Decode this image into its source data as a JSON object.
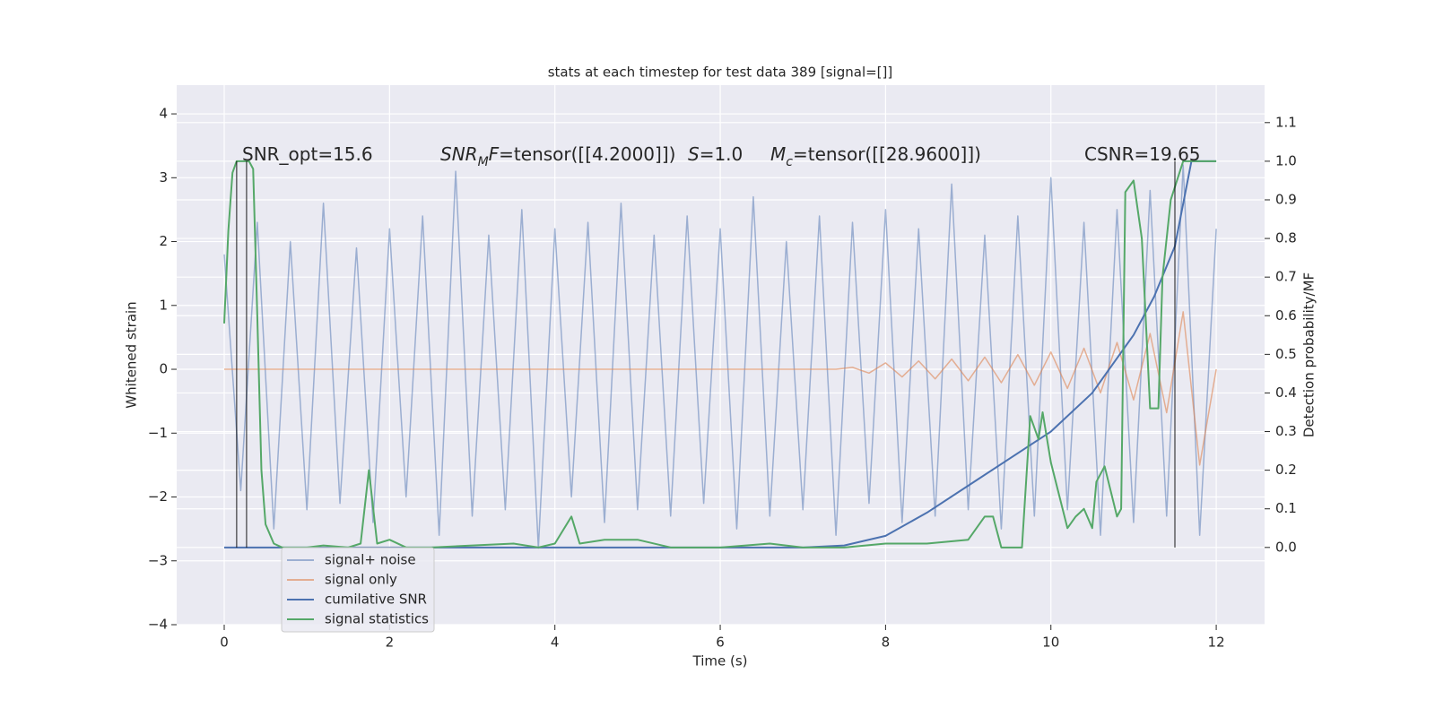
{
  "chart_data": {
    "type": "line",
    "title": "stats at each timestep for test data 389 [signal=[]]",
    "x_label": "Time (s)",
    "y_label": "Whitened strain",
    "y2_label": "Detection probability/MF",
    "xlim": [
      -0.575,
      12.585
    ],
    "ylim": [
      -4,
      4.45
    ],
    "y2lim": [
      -0.2,
      1.197
    ],
    "xticks": [
      0,
      2,
      4,
      6,
      8,
      10,
      12
    ],
    "yticks": [
      {
        "value": -4,
        "label": "−4"
      },
      {
        "value": -3,
        "label": "−3"
      },
      {
        "value": -2,
        "label": "−2"
      },
      {
        "value": -1,
        "label": "−1"
      },
      0,
      1,
      2,
      3,
      4
    ],
    "y2ticks": [
      {
        "value": 0,
        "label": "0.0"
      },
      0.1,
      0.2,
      0.3,
      0.4,
      0.5,
      0.6,
      0.7,
      0.8,
      0.9,
      {
        "value": 1,
        "label": "1.0"
      },
      1.1
    ],
    "grid": true,
    "legend": "lower left",
    "series": [
      {
        "name": "signal+ noise",
        "color": "#4c72b0",
        "opacity": 0.5,
        "x": [
          0,
          0.2,
          0.4,
          0.6,
          0.8,
          1,
          1.2,
          1.4,
          1.6,
          1.8,
          2,
          2.2,
          2.4,
          2.6,
          2.8,
          3,
          3.2,
          3.4,
          3.6,
          3.8,
          4,
          4.2,
          4.4,
          4.6,
          4.8,
          5,
          5.2,
          5.4,
          5.6,
          5.8,
          6,
          6.2,
          6.4,
          6.6,
          6.8,
          7,
          7.2,
          7.4,
          7.6,
          7.8,
          8,
          8.2,
          8.4,
          8.6,
          8.8,
          9,
          9.2,
          9.4,
          9.6,
          9.8,
          10,
          10.2,
          10.4,
          10.6,
          10.8,
          11,
          11.2,
          11.4,
          11.6,
          11.8,
          12
        ],
        "values": [
          1.8,
          -1.9,
          2.3,
          -2.5,
          2.0,
          -2.2,
          2.6,
          -2.1,
          1.9,
          -2.4,
          2.2,
          -2.0,
          2.4,
          -2.6,
          3.1,
          -2.3,
          2.1,
          -2.2,
          2.5,
          -2.8,
          2.2,
          -2.0,
          2.3,
          -2.4,
          2.6,
          -2.2,
          2.1,
          -2.3,
          2.4,
          -2.1,
          2.2,
          -2.5,
          2.7,
          -2.3,
          2.0,
          -2.2,
          2.4,
          -2.6,
          2.3,
          -2.1,
          2.5,
          -2.4,
          2.2,
          -2.3,
          2.9,
          -2.2,
          2.1,
          -2.5,
          2.4,
          -2.3,
          3.0,
          -2.2,
          2.3,
          -2.6,
          2.5,
          -2.4,
          2.8,
          -2.3,
          3.2,
          -2.6,
          2.2
        ]
      },
      {
        "name": "signal only",
        "color": "#dd8452",
        "opacity": 0.6,
        "x": [
          0,
          0.2,
          0.4,
          0.6,
          0.8,
          1,
          1.2,
          1.4,
          1.6,
          1.8,
          2,
          2.2,
          2.4,
          2.6,
          2.8,
          3,
          3.2,
          3.4,
          3.6,
          3.8,
          4,
          4.2,
          4.4,
          4.6,
          4.8,
          5,
          5.2,
          5.4,
          5.6,
          5.8,
          6,
          6.2,
          6.4,
          6.6,
          6.8,
          7,
          7.2,
          7.4,
          7.6,
          7.8,
          8,
          8.2,
          8.4,
          8.6,
          8.8,
          9,
          9.2,
          9.4,
          9.6,
          9.8,
          10,
          10.2,
          10.4,
          10.6,
          10.8,
          11,
          11.2,
          11.4,
          11.6,
          11.8,
          12
        ],
        "values": [
          0,
          0,
          0,
          0,
          0,
          0,
          0,
          0,
          0,
          0,
          0,
          0,
          0,
          0,
          0,
          0,
          0,
          0,
          0,
          0,
          0,
          0,
          0,
          0,
          0,
          0,
          0,
          0,
          0,
          0,
          0,
          0,
          0,
          0,
          0,
          0,
          0,
          0,
          0.03,
          -0.06,
          0.1,
          -0.12,
          0.13,
          -0.15,
          0.16,
          -0.18,
          0.19,
          -0.21,
          0.23,
          -0.25,
          0.27,
          -0.3,
          0.33,
          -0.37,
          0.42,
          -0.48,
          0.56,
          -0.68,
          0.9,
          -1.5,
          0
        ]
      },
      {
        "name": "cumilative SNR",
        "color": "#4c72b0",
        "opacity": 1,
        "axis": "y2",
        "x": [
          0,
          7.0,
          7.5,
          8,
          8.5,
          9,
          9.5,
          10,
          10.5,
          11,
          11.25,
          11.5,
          11.7,
          12
        ],
        "values": [
          0,
          0,
          0.005,
          0.03,
          0.09,
          0.16,
          0.23,
          0.3,
          0.4,
          0.55,
          0.65,
          0.78,
          1.0,
          1.0
        ]
      },
      {
        "name": "signal statistics",
        "color": "#55a868",
        "opacity": 1,
        "axis": "y2",
        "x": [
          0,
          0.05,
          0.1,
          0.15,
          0.3,
          0.35,
          0.4,
          0.45,
          0.5,
          0.6,
          0.7,
          1.0,
          1.2,
          1.5,
          1.65,
          1.75,
          1.85,
          2,
          2.2,
          2.5,
          3.0,
          3.5,
          3.8,
          4.0,
          4.2,
          4.3,
          4.6,
          5.0,
          5.4,
          6.0,
          6.6,
          7.0,
          7.5,
          8.0,
          8.5,
          9.0,
          9.2,
          9.3,
          9.4,
          9.65,
          9.75,
          9.85,
          9.9,
          10.0,
          10.2,
          10.3,
          10.4,
          10.5,
          10.55,
          10.65,
          10.8,
          10.85,
          10.9,
          11.0,
          11.1,
          11.2,
          11.3,
          11.35,
          11.45,
          11.6,
          12.0
        ],
        "values": [
          0.58,
          0.82,
          0.97,
          1.0,
          1.0,
          0.98,
          0.6,
          0.2,
          0.06,
          0.01,
          0.0,
          0.0,
          0.005,
          0.0,
          0.01,
          0.2,
          0.01,
          0.02,
          0.0,
          0.0,
          0.005,
          0.01,
          0.0,
          0.01,
          0.08,
          0.01,
          0.02,
          0.02,
          0.0,
          0.0,
          0.01,
          0.0,
          0.0,
          0.01,
          0.01,
          0.02,
          0.08,
          0.08,
          0.0,
          0.0,
          0.34,
          0.28,
          0.35,
          0.22,
          0.05,
          0.08,
          0.1,
          0.05,
          0.17,
          0.21,
          0.08,
          0.1,
          0.92,
          0.95,
          0.8,
          0.36,
          0.36,
          0.7,
          0.9,
          1.0,
          1.0
        ]
      }
    ],
    "vlines": [
      0.15,
      0.27,
      11.5
    ],
    "vline_y2_range": [
      0,
      1
    ],
    "annotations": [
      [
        {
          "text": "SNR_opt=15.6"
        }
      ],
      [
        {
          "text": "SNR",
          "italic": true
        },
        {
          "text": "M",
          "italic": true,
          "sub": true
        },
        {
          "text": "F",
          "italic": true
        },
        {
          "text": "=tensor([[4.2000]])"
        }
      ],
      [
        {
          "text": "S",
          "italic": true
        },
        {
          "text": "=1.0"
        }
      ],
      [
        {
          "text": "M",
          "italic": true
        },
        {
          "text": "c",
          "italic": true,
          "sub": true
        },
        {
          "text": "=tensor([[28.9600]])"
        }
      ],
      [
        {
          "text": "CSNR=19.65"
        }
      ]
    ]
  }
}
